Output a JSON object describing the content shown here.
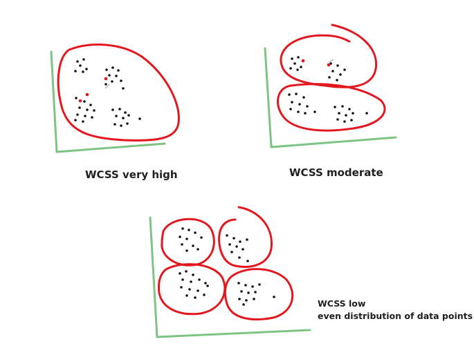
{
  "diagram": {
    "colors": {
      "axis": "#7dc383",
      "cluster_outline": "#e3181f",
      "point": "#111111",
      "centroid": "#e3181f",
      "caption": "#1f1f1f"
    },
    "panels": [
      {
        "id": "very-high",
        "caption_lines": [
          "WCSS very high"
        ],
        "cluster_count": 1
      },
      {
        "id": "moderate",
        "caption_lines": [
          "WCSS moderate"
        ],
        "cluster_count": 2
      },
      {
        "id": "low",
        "caption_lines": [
          "WCSS low",
          "even distribution of data points"
        ],
        "cluster_count": 4
      }
    ]
  }
}
